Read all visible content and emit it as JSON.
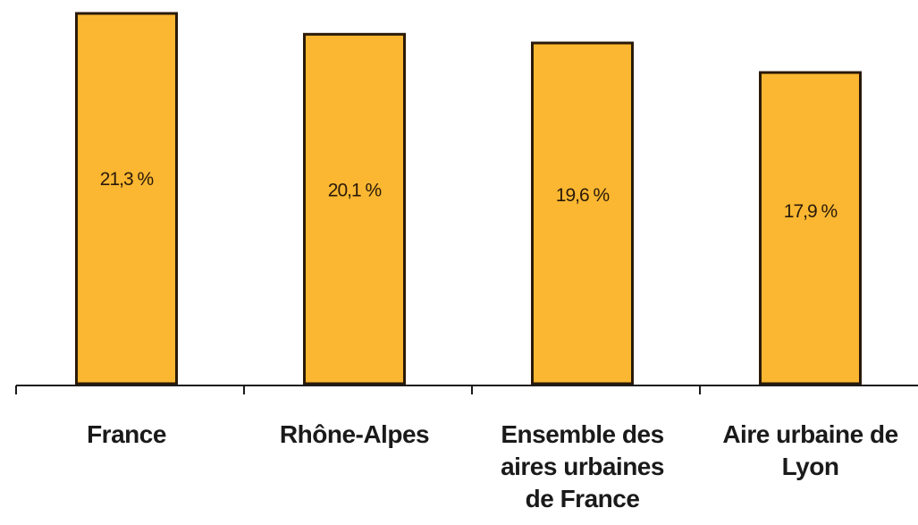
{
  "chart_data": {
    "type": "bar",
    "categories": [
      "France",
      "Rhône-Alpes",
      "Ensemble des aires urbaines de France",
      "Aire urbaine de Lyon"
    ],
    "values": [
      21.3,
      20.1,
      19.6,
      17.9
    ],
    "value_labels": [
      "21,3 %",
      "20,1 %",
      "19,6 %",
      "17,9 %"
    ],
    "color": "#fbb731"
  }
}
